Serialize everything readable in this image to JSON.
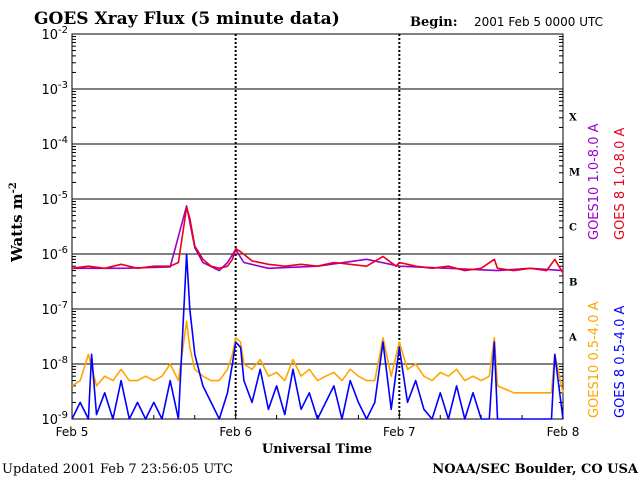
{
  "chart_data": {
    "type": "line",
    "title": "GOES Xray Flux (5 minute data)",
    "begin_label": "Begin:",
    "begin_value": "2001 Feb 5 0000 UTC",
    "xlabel": "Universal Time",
    "ylabel": "Watts m",
    "ylabel_exponent": "-2",
    "yscale": "log",
    "ylim_exponent": [
      -9,
      -2
    ],
    "y_tick_exponents": [
      -9,
      -8,
      -7,
      -6,
      -5,
      -4,
      -3,
      -2
    ],
    "y_tick_base": "10",
    "x_ticks": [
      "Feb 5",
      "Feb 6",
      "Feb 7",
      "Feb 8"
    ],
    "xlim_days": [
      0,
      3
    ],
    "flare_classes": [
      "A",
      "B",
      "C",
      "M",
      "X"
    ],
    "legend": [
      {
        "label": "GOES10 1.0-8.0 A",
        "color": "#9900cc"
      },
      {
        "label": "GOES 8 1.0-8.0 A",
        "color": "#e8001c"
      },
      {
        "label": "GOES10 0.5-4.0 A",
        "color": "#ffa500"
      },
      {
        "label": "GOES 8 0.5-4.0 A",
        "color": "#0000ff"
      }
    ],
    "series": [
      {
        "name": "GOES10 1.0-8.0 A",
        "color": "#9900cc",
        "x": [
          0,
          0.3,
          0.6,
          0.7,
          0.75,
          0.8,
          0.9,
          0.95,
          1.0,
          1.05,
          1.2,
          1.5,
          1.8,
          2.0,
          2.3,
          2.6,
          2.8,
          3.0
        ],
        "y": [
          5.5e-07,
          5.5e-07,
          5.8e-07,
          7.5e-06,
          1.3e-06,
          7e-07,
          5e-07,
          7e-07,
          1.2e-06,
          7e-07,
          5.5e-07,
          6e-07,
          8e-07,
          6e-07,
          5.5e-07,
          5e-07,
          5.5e-07,
          5e-07
        ]
      },
      {
        "name": "GOES 8 1.0-8.0 A",
        "color": "#e8001c",
        "x": [
          0,
          0.1,
          0.2,
          0.3,
          0.4,
          0.5,
          0.6,
          0.65,
          0.7,
          0.72,
          0.75,
          0.8,
          0.85,
          0.9,
          0.95,
          0.98,
          1.0,
          1.03,
          1.1,
          1.2,
          1.3,
          1.4,
          1.5,
          1.6,
          1.7,
          1.8,
          1.9,
          1.98,
          2.0,
          2.05,
          2.1,
          2.2,
          2.3,
          2.4,
          2.5,
          2.58,
          2.6,
          2.7,
          2.8,
          2.9,
          2.95,
          3.0
        ],
        "y": [
          5.5e-07,
          6e-07,
          5.5e-07,
          6.5e-07,
          5.5e-07,
          6e-07,
          6e-07,
          7e-07,
          7e-06,
          4.5e-06,
          1.4e-06,
          8e-07,
          6e-07,
          5.5e-07,
          6e-07,
          8e-07,
          1.25e-06,
          1.1e-06,
          7.5e-07,
          6.5e-07,
          6e-07,
          6.5e-07,
          6e-07,
          7e-07,
          6.5e-07,
          6e-07,
          9e-07,
          6e-07,
          7e-07,
          6.5e-07,
          6e-07,
          5.5e-07,
          6e-07,
          5e-07,
          5.5e-07,
          8e-07,
          5.5e-07,
          5e-07,
          5.5e-07,
          5e-07,
          8e-07,
          4.5e-07
        ]
      },
      {
        "name": "GOES10 0.5-4.0 A",
        "color": "#ffa500",
        "x": [
          0,
          0.05,
          0.1,
          0.15,
          0.2,
          0.25,
          0.3,
          0.35,
          0.4,
          0.45,
          0.5,
          0.55,
          0.6,
          0.65,
          0.7,
          0.72,
          0.75,
          0.8,
          0.85,
          0.9,
          0.95,
          0.98,
          1.0,
          1.03,
          1.05,
          1.1,
          1.15,
          1.2,
          1.25,
          1.3,
          1.35,
          1.4,
          1.45,
          1.5,
          1.55,
          1.6,
          1.65,
          1.7,
          1.75,
          1.8,
          1.85,
          1.9,
          1.95,
          2.0,
          2.05,
          2.1,
          2.15,
          2.2,
          2.25,
          2.3,
          2.35,
          2.4,
          2.45,
          2.5,
          2.55,
          2.58,
          2.6,
          2.7,
          2.8,
          2.9,
          2.93,
          2.95,
          3.0
        ],
        "y": [
          4e-09,
          5e-09,
          1.5e-08,
          4e-09,
          6e-09,
          5e-09,
          8e-09,
          5e-09,
          5e-09,
          6e-09,
          5e-09,
          6e-09,
          1e-08,
          5e-09,
          6e-08,
          2e-08,
          8e-09,
          6e-09,
          5e-09,
          5e-09,
          8e-09,
          1.5e-08,
          3e-08,
          2.5e-08,
          1e-08,
          8e-09,
          1.2e-08,
          6e-09,
          7e-09,
          5e-09,
          1.2e-08,
          6e-09,
          8e-09,
          5e-09,
          6e-09,
          7e-09,
          5e-09,
          8e-09,
          6e-09,
          5e-09,
          5e-09,
          3e-08,
          6e-09,
          2.5e-08,
          8e-09,
          1e-08,
          6e-09,
          5e-09,
          7e-09,
          6e-09,
          8e-09,
          5e-09,
          6e-09,
          5e-09,
          6e-09,
          3e-08,
          4e-09,
          3e-09,
          3e-09,
          3e-09,
          3e-09,
          1.5e-08,
          3e-09
        ]
      },
      {
        "name": "GOES 8 0.5-4.0 A",
        "color": "#0000ff",
        "x": [
          0,
          0.05,
          0.1,
          0.12,
          0.15,
          0.2,
          0.25,
          0.3,
          0.35,
          0.4,
          0.45,
          0.5,
          0.55,
          0.6,
          0.65,
          0.7,
          0.72,
          0.75,
          0.8,
          0.85,
          0.9,
          0.95,
          0.98,
          1.0,
          1.03,
          1.05,
          1.1,
          1.15,
          1.2,
          1.25,
          1.3,
          1.35,
          1.4,
          1.45,
          1.5,
          1.55,
          1.6,
          1.65,
          1.7,
          1.75,
          1.8,
          1.85,
          1.9,
          1.95,
          2.0,
          2.05,
          2.1,
          2.15,
          2.2,
          2.25,
          2.3,
          2.35,
          2.4,
          2.45,
          2.5,
          2.55,
          2.58,
          2.6,
          2.7,
          2.8,
          2.9,
          2.93,
          2.95,
          3.0
        ],
        "y": [
          1e-09,
          2e-09,
          1e-09,
          1.5e-08,
          1.2e-09,
          3e-09,
          1e-09,
          5e-09,
          1e-09,
          2e-09,
          1e-09,
          2e-09,
          1e-09,
          5e-09,
          1e-09,
          1e-06,
          1e-07,
          1.5e-08,
          4e-09,
          2e-09,
          1e-09,
          3e-09,
          1e-08,
          2.5e-08,
          2e-08,
          5e-09,
          2e-09,
          8e-09,
          1.5e-09,
          4e-09,
          1.2e-09,
          8e-09,
          1.5e-09,
          3e-09,
          1e-09,
          2e-09,
          4e-09,
          1e-09,
          5e-09,
          2e-09,
          1e-09,
          2e-09,
          2.5e-08,
          1.5e-09,
          2e-08,
          2e-09,
          5e-09,
          1.5e-09,
          1e-09,
          3e-09,
          1e-09,
          4e-09,
          1e-09,
          3e-09,
          1e-09,
          1e-09,
          2.5e-08,
          1e-09,
          1e-09,
          1e-09,
          1e-09,
          1e-09,
          1.5e-08,
          1e-09
        ]
      }
    ]
  },
  "footer": {
    "updated": "Updated 2001 Feb  7 23:56:05 UTC",
    "source": "NOAA/SEC Boulder, CO USA"
  }
}
